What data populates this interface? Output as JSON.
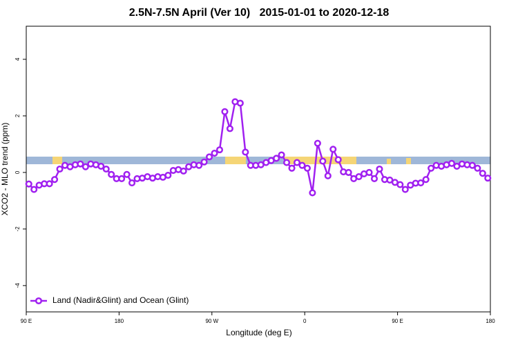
{
  "chart_data": {
    "type": "line",
    "title": "2.5N-7.5N April (Ver 10)   2015-01-01 to 2020-12-18",
    "x_label": "Longitude (deg E)",
    "y_label": "XCO2 - MLO trend (ppm)",
    "xlim": [
      90,
      540
    ],
    "ylim": [
      -4.93,
      5.17
    ],
    "xticks": [
      {
        "value": 90,
        "label": "90 E"
      },
      180,
      {
        "value": 270,
        "label": "90 W"
      },
      {
        "value": 360,
        "label": "0"
      },
      {
        "value": 450,
        "label": "90 E"
      },
      {
        "value": 540,
        "label": "180"
      }
    ],
    "yticks": [
      -4,
      -2,
      0,
      2,
      4
    ],
    "legend_position": "bottom-left",
    "x": [
      92.5,
      97.5,
      102.5,
      107.5,
      112.5,
      117.5,
      122.5,
      127.5,
      132.5,
      137.5,
      142.5,
      147.5,
      152.5,
      157.5,
      162.5,
      167.5,
      172.5,
      177.5,
      182.5,
      187.5,
      192.5,
      197.5,
      202.5,
      207.5,
      212.5,
      217.5,
      222.5,
      227.5,
      232.5,
      237.5,
      242.5,
      247.5,
      252.5,
      257.5,
      262.5,
      267.5,
      272.5,
      277.5,
      282.5,
      287.5,
      292.5,
      297.5,
      302.5,
      307.5,
      312.5,
      317.5,
      322.5,
      327.5,
      332.5,
      337.5,
      342.5,
      347.5,
      352.5,
      357.5,
      362.5,
      367.5,
      372.5,
      377.5,
      382.5,
      387.5,
      392.5,
      397.5,
      402.5,
      407.5,
      412.5,
      417.5,
      422.5,
      427.5,
      432.5,
      437.5,
      442.5,
      447.5,
      452.5,
      457.5,
      462.5,
      467.5,
      472.5,
      477.5,
      482.5,
      487.5,
      492.5,
      497.5,
      502.5,
      507.5,
      512.5,
      517.5,
      522.5,
      527.5,
      532.5,
      537.5
    ],
    "series": [
      {
        "name": "Land (Nadir&Glint) and Ocean (Glint)",
        "color": "#a020f0",
        "values": [
          -0.41,
          -0.6,
          -0.45,
          -0.4,
          -0.4,
          -0.25,
          0.12,
          0.25,
          0.2,
          0.27,
          0.3,
          0.2,
          0.3,
          0.27,
          0.22,
          0.12,
          -0.07,
          -0.22,
          -0.22,
          -0.07,
          -0.37,
          -0.22,
          -0.2,
          -0.15,
          -0.2,
          -0.15,
          -0.17,
          -0.1,
          0.07,
          0.1,
          0.05,
          0.2,
          0.27,
          0.25,
          0.37,
          0.55,
          0.68,
          0.8,
          2.15,
          1.55,
          2.5,
          2.45,
          0.72,
          0.25,
          0.25,
          0.27,
          0.35,
          0.42,
          0.5,
          0.62,
          0.35,
          0.15,
          0.35,
          0.25,
          0.15,
          -0.72,
          1.03,
          0.4,
          -0.12,
          0.82,
          0.45,
          0.02,
          0.0,
          -0.22,
          -0.15,
          -0.05,
          0.0,
          -0.22,
          0.12,
          -0.25,
          -0.27,
          -0.35,
          -0.43,
          -0.6,
          -0.45,
          -0.38,
          -0.37,
          -0.25,
          0.15,
          0.25,
          0.22,
          0.27,
          0.32,
          0.22,
          0.3,
          0.27,
          0.25,
          0.15,
          -0.03,
          -0.2
        ]
      }
    ]
  }
}
